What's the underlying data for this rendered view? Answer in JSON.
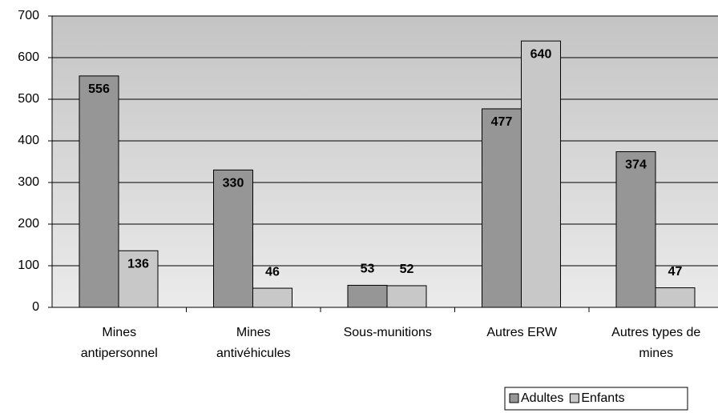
{
  "chart_data": {
    "type": "bar",
    "categories": [
      [
        "Mines",
        "antipersonnel"
      ],
      [
        "Mines",
        "antivéhicules"
      ],
      [
        "Sous-munitions"
      ],
      [
        "Autres ERW"
      ],
      [
        "Autres types de",
        "mines"
      ]
    ],
    "series": [
      {
        "name": "Adultes",
        "color": "#969696",
        "values": [
          556,
          330,
          53,
          477,
          374
        ]
      },
      {
        "name": "Enfants",
        "color": "#c8c8c8",
        "values": [
          136,
          46,
          52,
          640,
          47
        ]
      }
    ],
    "ylim": [
      0,
      700
    ],
    "yticks": [
      0,
      100,
      200,
      300,
      400,
      500,
      600,
      700
    ],
    "grid": true,
    "legend": "bottom-right"
  }
}
